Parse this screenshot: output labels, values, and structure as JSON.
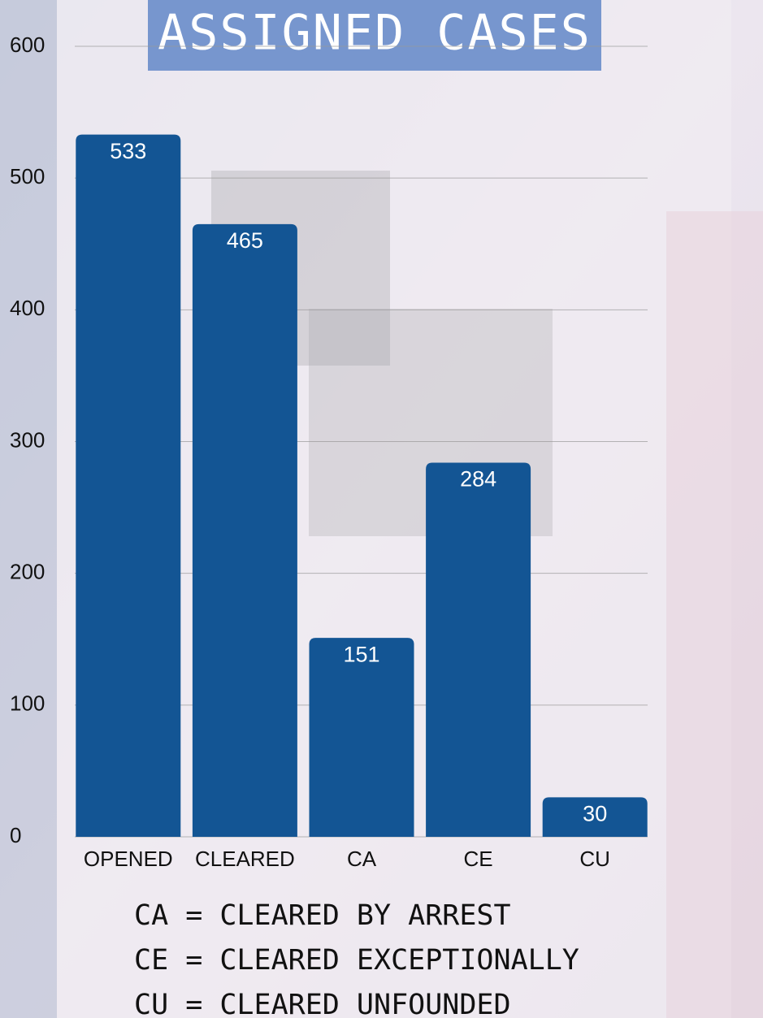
{
  "chart_data": {
    "type": "bar",
    "title": "ASSIGNED CASES",
    "categories": [
      "OPENED",
      "CLEARED",
      "CA",
      "CE",
      "CU"
    ],
    "values": [
      533,
      465,
      151,
      284,
      30
    ],
    "color": "#135594",
    "ylim": [
      0,
      600
    ],
    "yticks": [
      0,
      100,
      200,
      300,
      400,
      500,
      600
    ],
    "grid": true,
    "notes": [
      "CA = CLEARED BY ARREST",
      "CE = CLEARED EXCEPTIONALLY",
      "CU = CLEARED UNFOUNDED"
    ]
  }
}
